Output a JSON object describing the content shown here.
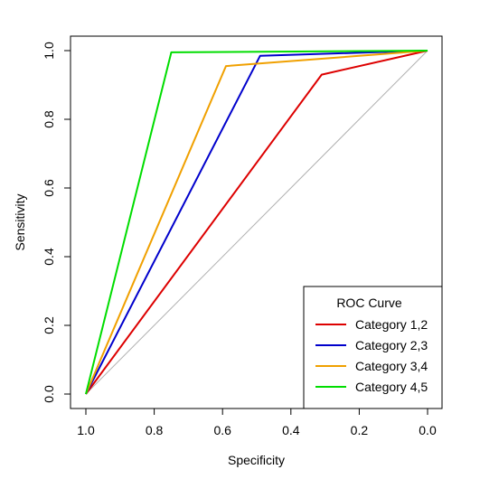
{
  "chart_data": {
    "type": "line",
    "xlabel": "Specificity",
    "ylabel": "Sensitivity",
    "xlim": [
      1.0,
      0.0
    ],
    "ylim": [
      0.0,
      1.0
    ],
    "x_reversed": true,
    "x_ticks": [
      "1.0",
      "0.8",
      "0.6",
      "0.4",
      "0.2",
      "0.0"
    ],
    "x_tick_values": [
      1.0,
      0.8,
      0.6,
      0.4,
      0.2,
      0.0
    ],
    "y_ticks": [
      "0.0",
      "0.2",
      "0.4",
      "0.6",
      "0.8",
      "1.0"
    ],
    "y_tick_values": [
      0.0,
      0.2,
      0.4,
      0.6,
      0.8,
      1.0
    ],
    "grid": false,
    "reference_line": {
      "x": [
        1.0,
        0.0
      ],
      "y": [
        0.0,
        1.0
      ],
      "color": "#b0b0b0"
    },
    "legend": {
      "title": "ROC Curve",
      "position": "bottom-right"
    },
    "series": [
      {
        "name": "Category 1,2",
        "color": "#dd0000",
        "x": [
          1.0,
          0.31,
          0.0
        ],
        "y": [
          0.0,
          0.93,
          1.0
        ]
      },
      {
        "name": "Category 2,3",
        "color": "#0000cc",
        "x": [
          1.0,
          0.49,
          0.0
        ],
        "y": [
          0.0,
          0.985,
          1.0
        ]
      },
      {
        "name": "Category 3,4",
        "color": "#f0a000",
        "x": [
          1.0,
          0.59,
          0.0
        ],
        "y": [
          0.0,
          0.955,
          1.0
        ]
      },
      {
        "name": "Category 4,5",
        "color": "#00dd00",
        "x": [
          1.0,
          0.75,
          0.0
        ],
        "y": [
          0.0,
          0.995,
          1.0
        ]
      }
    ]
  }
}
